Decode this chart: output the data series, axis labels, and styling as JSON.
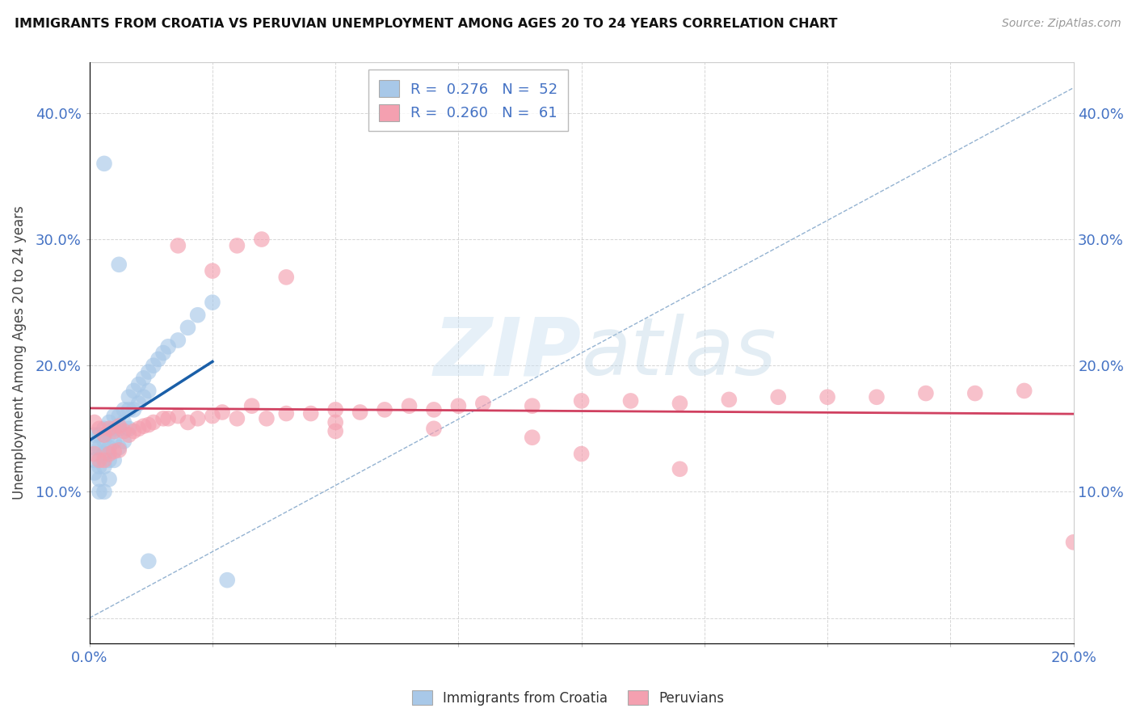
{
  "title": "IMMIGRANTS FROM CROATIA VS PERUVIAN UNEMPLOYMENT AMONG AGES 20 TO 24 YEARS CORRELATION CHART",
  "source_text": "Source: ZipAtlas.com",
  "ylabel": "Unemployment Among Ages 20 to 24 years",
  "xlim": [
    0.0,
    0.2
  ],
  "ylim": [
    -0.02,
    0.44
  ],
  "yticks": [
    0.0,
    0.1,
    0.2,
    0.3,
    0.4
  ],
  "ytick_labels": [
    "",
    "10.0%",
    "20.0%",
    "30.0%",
    "40.0%"
  ],
  "xtick_vals": [
    0.0,
    0.025,
    0.05,
    0.075,
    0.1,
    0.125,
    0.15,
    0.175,
    0.2
  ],
  "xtick_labels": [
    "0.0%",
    "",
    "",
    "",
    "",
    "",
    "",
    "",
    "20.0%"
  ],
  "blue_color": "#a8c8e8",
  "pink_color": "#f4a0b0",
  "blue_trend_color": "#1a5fa8",
  "pink_trend_color": "#d04060",
  "ref_line_color": "#88aacc",
  "grid_color": "#cccccc",
  "background_color": "#ffffff",
  "watermark_color": "#d8eaf8",
  "legend_R1": "R =  0.276",
  "legend_N1": "N =  52",
  "legend_R2": "R =  0.260",
  "legend_N2": "N =  61",
  "croatia_x": [
    0.001,
    0.001,
    0.001,
    0.001,
    0.002,
    0.002,
    0.002,
    0.002,
    0.002,
    0.003,
    0.003,
    0.003,
    0.003,
    0.003,
    0.004,
    0.004,
    0.004,
    0.004,
    0.004,
    0.005,
    0.005,
    0.005,
    0.005,
    0.006,
    0.006,
    0.006,
    0.007,
    0.007,
    0.007,
    0.008,
    0.008,
    0.008,
    0.009,
    0.009,
    0.01,
    0.01,
    0.011,
    0.011,
    0.012,
    0.012,
    0.013,
    0.014,
    0.015,
    0.016,
    0.018,
    0.02,
    0.022,
    0.025,
    0.028,
    0.003,
    0.006,
    0.012
  ],
  "croatia_y": [
    0.145,
    0.135,
    0.125,
    0.115,
    0.145,
    0.135,
    0.12,
    0.11,
    0.1,
    0.15,
    0.14,
    0.13,
    0.12,
    0.1,
    0.155,
    0.145,
    0.135,
    0.125,
    0.11,
    0.16,
    0.15,
    0.14,
    0.125,
    0.16,
    0.15,
    0.135,
    0.165,
    0.155,
    0.14,
    0.175,
    0.165,
    0.15,
    0.18,
    0.165,
    0.185,
    0.17,
    0.19,
    0.175,
    0.195,
    0.18,
    0.2,
    0.205,
    0.21,
    0.215,
    0.22,
    0.23,
    0.24,
    0.25,
    0.03,
    0.36,
    0.28,
    0.045
  ],
  "peru_x": [
    0.001,
    0.001,
    0.002,
    0.002,
    0.003,
    0.003,
    0.004,
    0.004,
    0.005,
    0.005,
    0.006,
    0.006,
    0.007,
    0.008,
    0.009,
    0.01,
    0.011,
    0.012,
    0.013,
    0.015,
    0.016,
    0.018,
    0.02,
    0.022,
    0.025,
    0.027,
    0.03,
    0.033,
    0.036,
    0.04,
    0.045,
    0.05,
    0.055,
    0.06,
    0.065,
    0.07,
    0.075,
    0.08,
    0.09,
    0.1,
    0.11,
    0.12,
    0.13,
    0.14,
    0.15,
    0.16,
    0.17,
    0.18,
    0.19,
    0.2,
    0.03,
    0.04,
    0.035,
    0.025,
    0.018,
    0.05,
    0.07,
    0.09,
    0.1,
    0.12,
    0.05
  ],
  "peru_y": [
    0.155,
    0.13,
    0.15,
    0.125,
    0.145,
    0.125,
    0.15,
    0.13,
    0.148,
    0.132,
    0.152,
    0.133,
    0.148,
    0.145,
    0.148,
    0.15,
    0.152,
    0.153,
    0.155,
    0.158,
    0.158,
    0.16,
    0.155,
    0.158,
    0.16,
    0.163,
    0.158,
    0.168,
    0.158,
    0.162,
    0.162,
    0.165,
    0.163,
    0.165,
    0.168,
    0.165,
    0.168,
    0.17,
    0.168,
    0.172,
    0.172,
    0.17,
    0.173,
    0.175,
    0.175,
    0.175,
    0.178,
    0.178,
    0.18,
    0.06,
    0.295,
    0.27,
    0.3,
    0.275,
    0.295,
    0.155,
    0.15,
    0.143,
    0.13,
    0.118,
    0.148
  ]
}
